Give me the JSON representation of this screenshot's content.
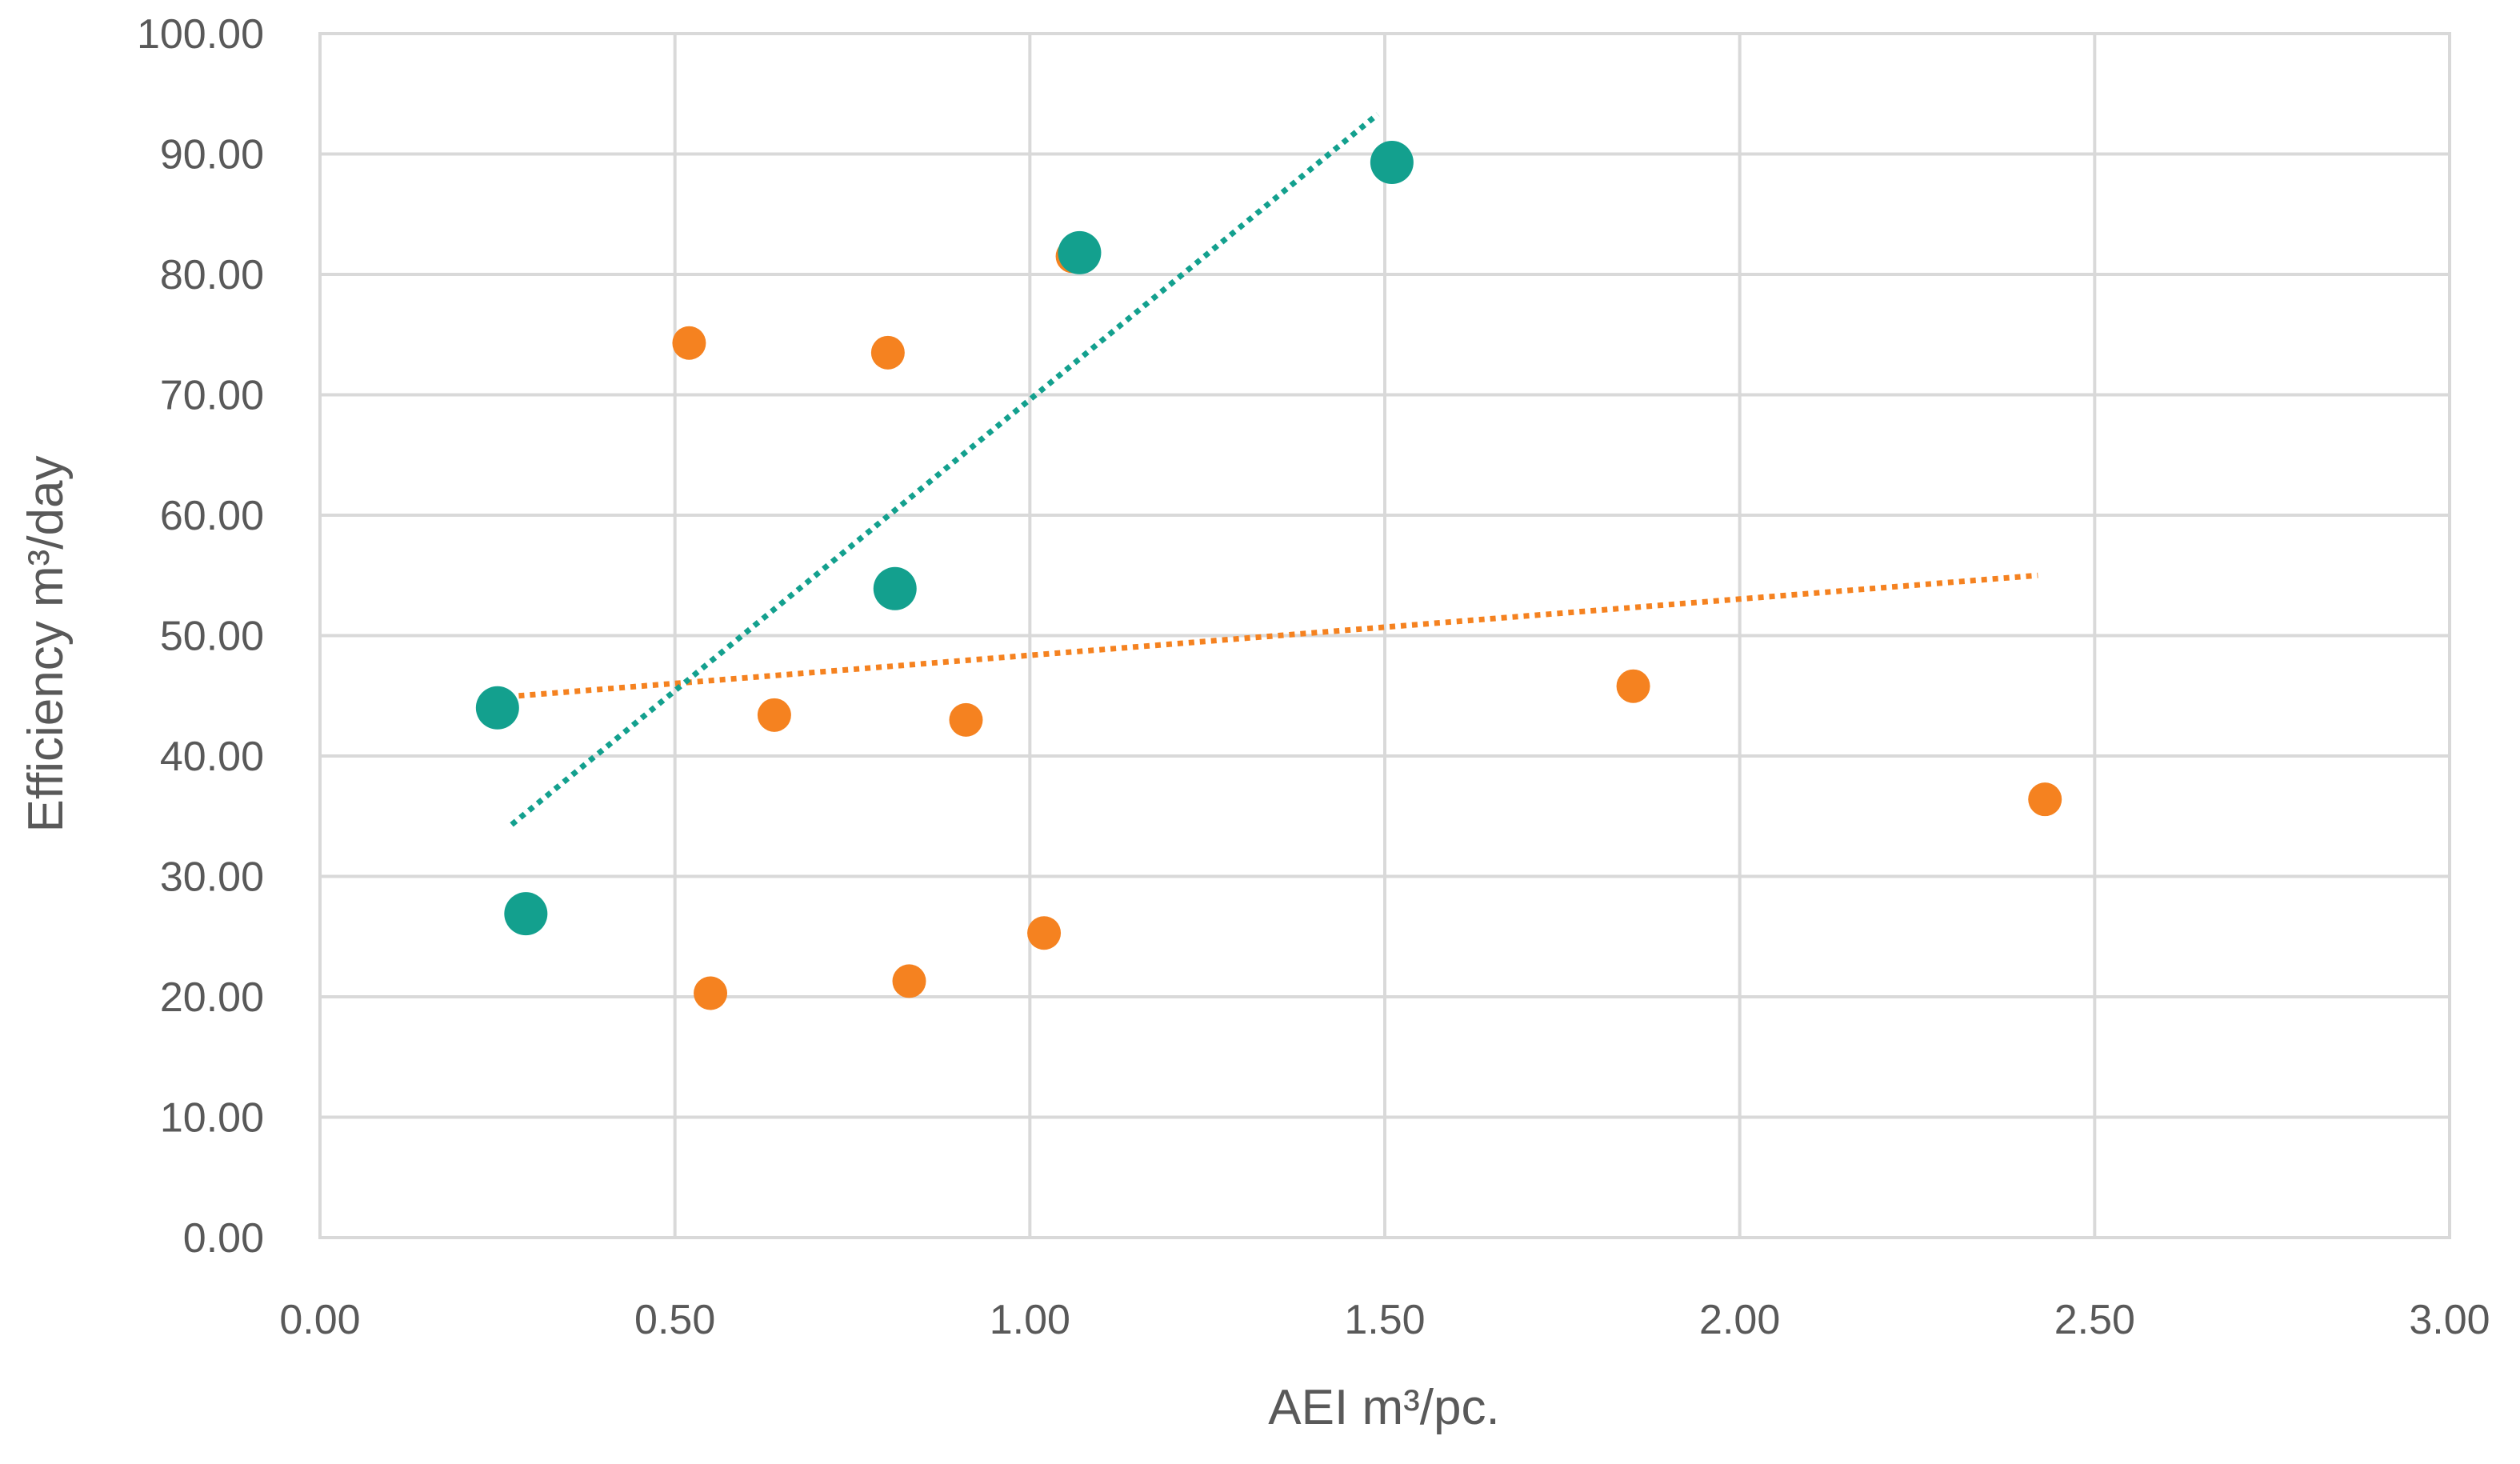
{
  "chart_data": {
    "type": "scatter",
    "title": "",
    "xlabel": "AEI  m³/pc.",
    "ylabel": "Efficiency m³/day",
    "xlim": [
      0,
      3
    ],
    "ylim": [
      0,
      100
    ],
    "x_ticks": [
      {
        "value": 0,
        "label": "0.00"
      },
      {
        "value": 0.5,
        "label": "0.50"
      },
      {
        "value": 1,
        "label": "1.00"
      },
      {
        "value": 1.5,
        "label": "1.50"
      },
      {
        "value": 2,
        "label": "2.00"
      },
      {
        "value": 2.5,
        "label": "2.50"
      },
      {
        "value": 3,
        "label": "3.00"
      }
    ],
    "y_ticks": [
      {
        "value": 0,
        "label": "0.00"
      },
      {
        "value": 10,
        "label": "10.00"
      },
      {
        "value": 20,
        "label": "20.00"
      },
      {
        "value": 30,
        "label": "30.00"
      },
      {
        "value": 40,
        "label": "40.00"
      },
      {
        "value": 50,
        "label": "50.00"
      },
      {
        "value": 60,
        "label": "60.00"
      },
      {
        "value": 70,
        "label": "70.00"
      },
      {
        "value": 80,
        "label": "80.00"
      },
      {
        "value": 90,
        "label": "90.00"
      },
      {
        "value": 100,
        "label": "100.00"
      }
    ],
    "grid": true,
    "legend": "none",
    "series": [
      {
        "name": "orange-series",
        "color": "#f58220",
        "marker": "small-circle",
        "points": [
          {
            "x": 0.52,
            "y": 74.3
          },
          {
            "x": 0.55,
            "y": 20.3
          },
          {
            "x": 0.64,
            "y": 43.4
          },
          {
            "x": 0.8,
            "y": 73.5
          },
          {
            "x": 0.83,
            "y": 21.3
          },
          {
            "x": 0.91,
            "y": 43.0
          },
          {
            "x": 1.02,
            "y": 25.3
          },
          {
            "x": 1.06,
            "y": 81.5
          },
          {
            "x": 1.85,
            "y": 45.8
          },
          {
            "x": 2.43,
            "y": 36.4
          }
        ],
        "trendline": {
          "style": "dotted",
          "x_start": 0.28,
          "y_start": 45.0,
          "x_end": 2.42,
          "y_end": 55.0
        }
      },
      {
        "name": "teal-series",
        "color": "#13a08e",
        "marker": "large-circle",
        "points": [
          {
            "x": 0.25,
            "y": 44.0
          },
          {
            "x": 0.29,
            "y": 26.9
          },
          {
            "x": 0.81,
            "y": 53.9
          },
          {
            "x": 1.07,
            "y": 81.8
          },
          {
            "x": 1.51,
            "y": 89.3
          }
        ],
        "trendline": {
          "style": "dotted",
          "x_start": 0.27,
          "y_start": 34.3,
          "x_end": 1.49,
          "y_end": 93.3
        }
      }
    ]
  }
}
